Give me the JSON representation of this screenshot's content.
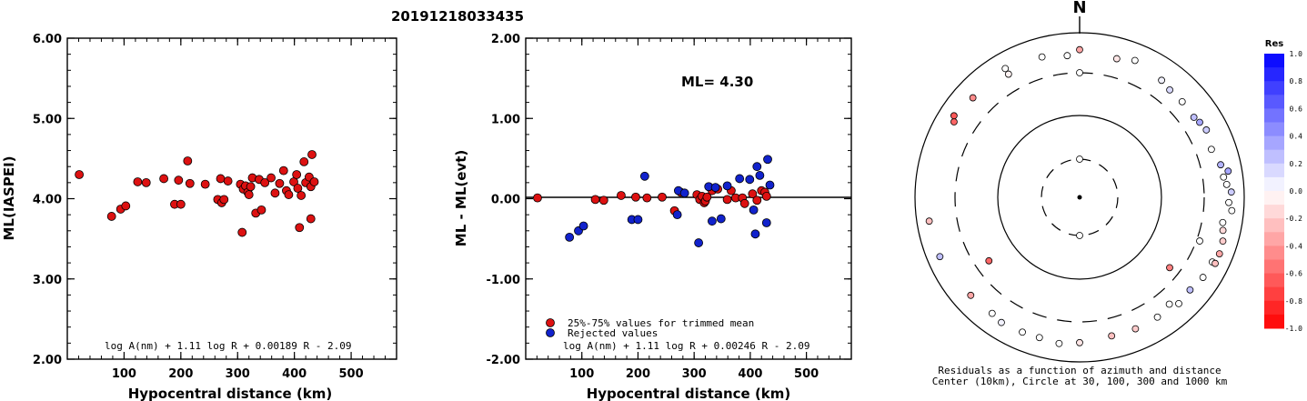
{
  "page_title": "20191218033435",
  "chart_data": [
    {
      "type": "scatter",
      "xlabel": "Hypocentral distance (km)",
      "ylabel": "ML(IASPEI)",
      "xlim": [
        0,
        580
      ],
      "ylim": [
        2.0,
        6.0
      ],
      "x_ticks": [
        "100",
        "200",
        "300",
        "400",
        "500"
      ],
      "y_ticks": [
        "2.00",
        "3.00",
        "4.00",
        "5.00",
        "6.00"
      ],
      "formula": "log A(nm) + 1.11 log R + 0.00189 R - 2.09",
      "point_color": "#dd1111",
      "points": [
        [
          21,
          4.3
        ],
        [
          78,
          3.78
        ],
        [
          94,
          3.87
        ],
        [
          103,
          3.91
        ],
        [
          124,
          4.21
        ],
        [
          139,
          4.2
        ],
        [
          170,
          4.25
        ],
        [
          189,
          3.93
        ],
        [
          196,
          4.23
        ],
        [
          200,
          3.93
        ],
        [
          212,
          4.47
        ],
        [
          216,
          4.19
        ],
        [
          243,
          4.18
        ],
        [
          265,
          3.99
        ],
        [
          270,
          4.25
        ],
        [
          272,
          3.95
        ],
        [
          276,
          3.99
        ],
        [
          283,
          4.22
        ],
        [
          305,
          4.18
        ],
        [
          308,
          3.58
        ],
        [
          310,
          4.12
        ],
        [
          314,
          4.16
        ],
        [
          318,
          4.08
        ],
        [
          320,
          4.05
        ],
        [
          323,
          4.15
        ],
        [
          326,
          4.26
        ],
        [
          332,
          3.82
        ],
        [
          338,
          4.24
        ],
        [
          342,
          3.86
        ],
        [
          348,
          4.2
        ],
        [
          359,
          4.26
        ],
        [
          366,
          4.07
        ],
        [
          374,
          4.19
        ],
        [
          381,
          4.35
        ],
        [
          386,
          4.1
        ],
        [
          390,
          4.05
        ],
        [
          399,
          4.21
        ],
        [
          404,
          4.3
        ],
        [
          406,
          4.13
        ],
        [
          409,
          3.64
        ],
        [
          412,
          4.04
        ],
        [
          417,
          4.46
        ],
        [
          420,
          4.2
        ],
        [
          426,
          4.27
        ],
        [
          429,
          4.15
        ],
        [
          429,
          3.75
        ],
        [
          431,
          4.55
        ],
        [
          435,
          4.21
        ]
      ]
    },
    {
      "type": "scatter",
      "xlabel": "Hypocentral distance (km)",
      "ylabel": "ML - ML(evt)",
      "xlim": [
        0,
        580
      ],
      "ylim": [
        -2.0,
        2.0
      ],
      "x_ticks": [
        "100",
        "200",
        "300",
        "400",
        "500"
      ],
      "y_ticks": [
        "-2.00",
        "-1.00",
        "0.00",
        "1.00",
        "2.00"
      ],
      "annotation": "ML= 4.30",
      "formula": "log A(nm) + 1.11 log R + 0.00246 R - 2.09",
      "legend": {
        "placement": "bottom-left",
        "entries": [
          "25%-75% values for trimmed mean",
          "Rejected values"
        ]
      },
      "series": [
        {
          "name": "25%-75% values for trimmed mean",
          "color": "#dd1111",
          "points": [
            [
              21,
              0.01
            ],
            [
              124,
              -0.01
            ],
            [
              139,
              -0.02
            ],
            [
              170,
              0.04
            ],
            [
              196,
              0.02
            ],
            [
              216,
              0.01
            ],
            [
              243,
              0.02
            ],
            [
              265,
              -0.15
            ],
            [
              276,
              0.08
            ],
            [
              305,
              0.05
            ],
            [
              310,
              -0.01
            ],
            [
              314,
              0.03
            ],
            [
              318,
              -0.05
            ],
            [
              320,
              -0.03
            ],
            [
              323,
              0.02
            ],
            [
              332,
              0.1
            ],
            [
              342,
              0.12
            ],
            [
              359,
              -0.01
            ],
            [
              366,
              0.1
            ],
            [
              374,
              0.01
            ],
            [
              386,
              0.01
            ],
            [
              390,
              -0.06
            ],
            [
              404,
              0.06
            ],
            [
              412,
              -0.02
            ],
            [
              420,
              0.1
            ],
            [
              426,
              0.08
            ],
            [
              429,
              0.03
            ]
          ]
        },
        {
          "name": "Rejected values",
          "color": "#1122cc",
          "points": [
            [
              78,
              -0.48
            ],
            [
              94,
              -0.4
            ],
            [
              103,
              -0.34
            ],
            [
              189,
              -0.26
            ],
            [
              200,
              -0.26
            ],
            [
              212,
              0.28
            ],
            [
              270,
              -0.2
            ],
            [
              272,
              0.1
            ],
            [
              283,
              0.07
            ],
            [
              308,
              -0.55
            ],
            [
              326,
              0.15
            ],
            [
              332,
              -0.28
            ],
            [
              338,
              0.14
            ],
            [
              348,
              -0.25
            ],
            [
              359,
              0.16
            ],
            [
              381,
              0.25
            ],
            [
              399,
              0.24
            ],
            [
              406,
              -0.14
            ],
            [
              409,
              -0.44
            ],
            [
              412,
              0.4
            ],
            [
              417,
              0.29
            ],
            [
              429,
              -0.3
            ],
            [
              431,
              0.49
            ],
            [
              435,
              0.17
            ]
          ]
        }
      ]
    },
    {
      "type": "scatter",
      "subtype": "polar",
      "north_label": "N",
      "caption_line1": "Residuals as a function of azimuth and distance",
      "caption_line2": "Center (10km), Circle at 30, 100, 300 and 1000 km",
      "colorbar": {
        "title": "Res",
        "ticks": [
          "1.0",
          "0.8",
          "0.6",
          "0.4",
          "0.2",
          "0.0",
          "-0.2",
          "-0.4",
          "-0.6",
          "-0.8",
          "-1.0"
        ],
        "positive_color": "#0000ff",
        "negative_color": "#ff0000"
      },
      "points": [
        [
          0,
          300,
          0.0
        ],
        [
          0,
          30,
          0.0
        ],
        [
          180,
          30,
          0.0
        ],
        [
          0,
          600,
          -0.35
        ],
        [
          15,
          530,
          -0.1
        ],
        [
          22,
          600,
          0.0
        ],
        [
          345,
          560,
          0.0
        ],
        [
          355,
          510,
          0.0
        ],
        [
          330,
          510,
          -0.05
        ],
        [
          35,
          520,
          0.05
        ],
        [
          40,
          480,
          0.15
        ],
        [
          47,
          480,
          0.0
        ],
        [
          55,
          470,
          0.25
        ],
        [
          58,
          500,
          0.35
        ],
        [
          62,
          530,
          0.2
        ],
        [
          70,
          480,
          0.0
        ],
        [
          77,
          550,
          0.3
        ],
        [
          85,
          600,
          0.0
        ],
        [
          82,
          560,
          0.0
        ],
        [
          88,
          680,
          0.2
        ],
        [
          80,
          660,
          0.35
        ],
        [
          92,
          630,
          0.0
        ],
        [
          95,
          700,
          0.0
        ],
        [
          100,
          560,
          0.0
        ],
        [
          103,
          590,
          -0.15
        ],
        [
          107,
          640,
          -0.2
        ],
        [
          112,
          660,
          -0.35
        ],
        [
          116,
          600,
          0.0
        ],
        [
          116,
          660,
          -0.25
        ],
        [
          123,
          590,
          0.0
        ],
        [
          130,
          540,
          0.25
        ],
        [
          137,
          560,
          0.0
        ],
        [
          147,
          520,
          0.0
        ],
        [
          157,
          520,
          -0.2
        ],
        [
          167,
          510,
          -0.25
        ],
        [
          180,
          560,
          -0.1
        ],
        [
          188,
          600,
          0.0
        ],
        [
          196,
          570,
          0.0
        ],
        [
          203,
          580,
          0.0
        ],
        [
          212,
          600,
          0.05
        ],
        [
          217,
          560,
          0.0
        ],
        [
          228,
          580,
          -0.35
        ],
        [
          247,
          680,
          0.25
        ],
        [
          261,
          690,
          -0.25
        ],
        [
          128,
          230,
          -0.5
        ],
        [
          235,
          210,
          -0.6
        ],
        [
          301,
          580,
          -0.6
        ],
        [
          303,
          640,
          -0.65
        ],
        [
          313,
          570,
          -0.45
        ],
        [
          110,
          330,
          0.0
        ],
        [
          330,
          620,
          0.0
        ],
        [
          140,
          470,
          0.0
        ]
      ]
    }
  ]
}
